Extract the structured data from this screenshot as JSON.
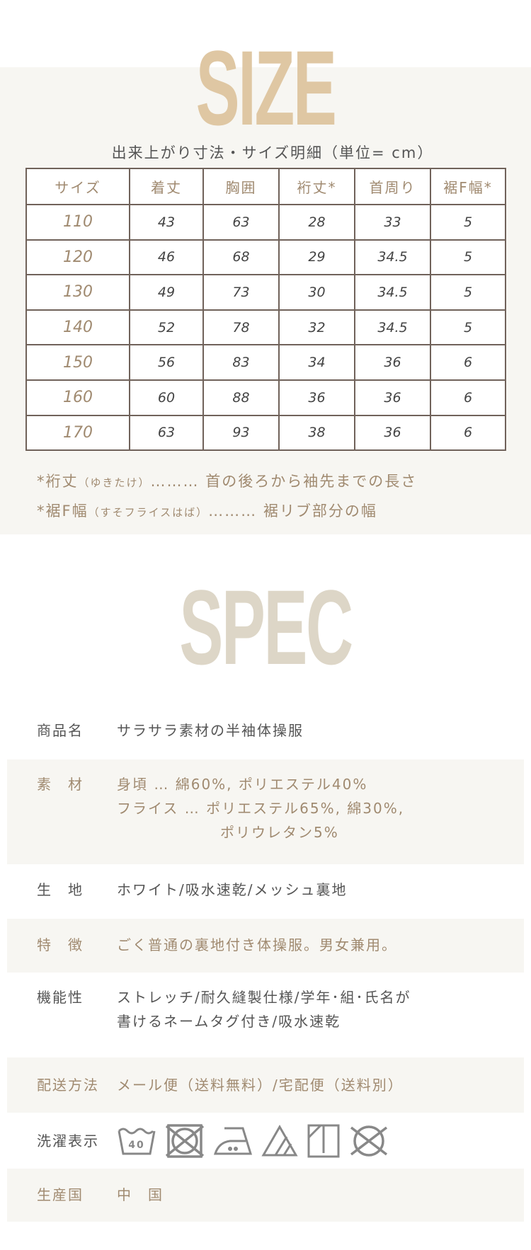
{
  "size": {
    "title": "SIZE",
    "caption": "出来上がり寸法・サイズ明細（単位= cm）",
    "headers": [
      "サイズ",
      "着丈",
      "胸囲",
      "裄丈*",
      "首周り",
      "裾F幅*"
    ],
    "rows": [
      [
        "110",
        "43",
        "63",
        "28",
        "33",
        "5"
      ],
      [
        "120",
        "46",
        "68",
        "29",
        "34.5",
        "5"
      ],
      [
        "130",
        "49",
        "73",
        "30",
        "34.5",
        "5"
      ],
      [
        "140",
        "52",
        "78",
        "32",
        "34.5",
        "5"
      ],
      [
        "150",
        "56",
        "83",
        "34",
        "36",
        "6"
      ],
      [
        "160",
        "60",
        "88",
        "36",
        "36",
        "6"
      ],
      [
        "170",
        "63",
        "93",
        "38",
        "36",
        "6"
      ]
    ],
    "notes": [
      {
        "term": "*裄丈",
        "reading": "（ゆきたけ）",
        "desc": "……… 首の後ろから袖先までの長さ"
      },
      {
        "term": "*裾F幅",
        "reading": "（すそフライスはば）",
        "desc": "……… 裾リブ部分の幅"
      }
    ]
  },
  "spec": {
    "title": "SPEC",
    "rows": [
      {
        "label": "商品名",
        "value": "サラサラ素材の半袖体操服"
      },
      {
        "label": "素　材",
        "lines": [
          "身頃 … 綿60%, ポリエステル40%",
          "フライス … ポリエステル65%, 綿30%,",
          "ポリウレタン5%"
        ]
      },
      {
        "label": "生　地",
        "value": "ホワイト/吸水速乾/メッシュ裏地"
      },
      {
        "label": "特　徴",
        "value": "ごく普通の裏地付き体操服。男女兼用。"
      },
      {
        "label": "機能性",
        "lines": [
          "ストレッチ/耐久縫製仕様/学年･組･氏名が",
          "書けるネームタグ付き/吸水速乾"
        ]
      },
      {
        "label": "配送方法",
        "value": "メール便（送料無料）/宅配便（送料別）"
      },
      {
        "label": "洗濯表示",
        "icons": [
          "wash-40-icon",
          "no-tumble-dry-icon",
          "iron-low-icon",
          "bleach-icon",
          "drip-dry-shade-icon",
          "no-dry-clean-icon"
        ],
        "wash_temp": "40"
      },
      {
        "label": "生産国",
        "value": "中　国"
      }
    ]
  }
}
